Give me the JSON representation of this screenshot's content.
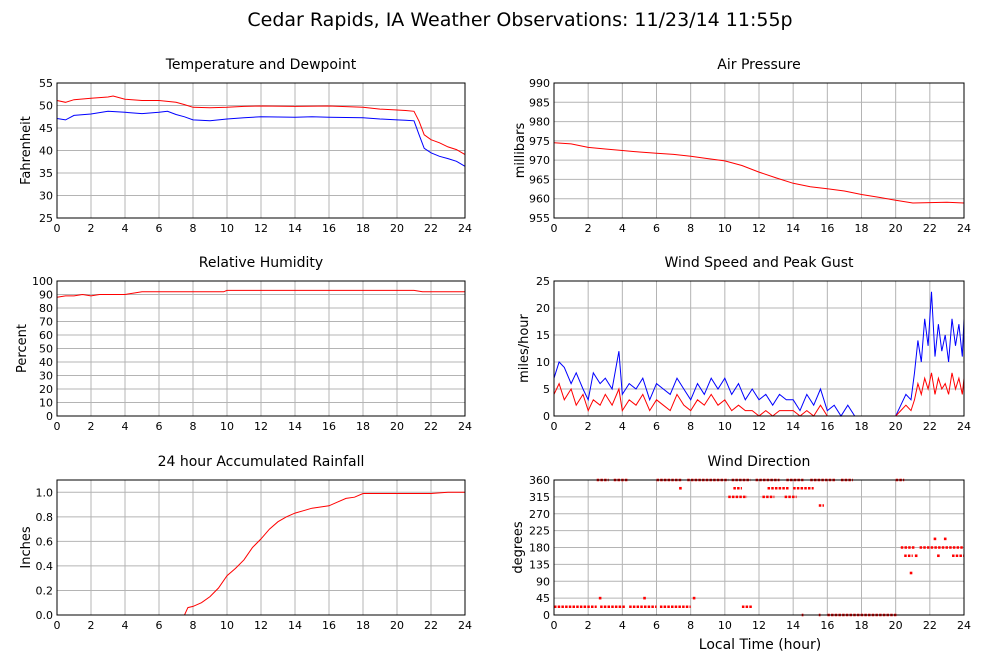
{
  "title": "Cedar Rapids, IA Weather Observations: 11/23/14 11:55p",
  "xlabel": "Local Time (hour)",
  "colors": {
    "red": "#ff0000",
    "blue": "#0000ff",
    "grid": "#b4b4b4"
  },
  "chart_data": [
    {
      "id": "temp",
      "type": "line",
      "title": "Temperature and Dewpoint",
      "ylabel": "Fahrenheit",
      "xlim": [
        0,
        24
      ],
      "ylim": [
        25,
        55
      ],
      "xticks": [
        0,
        2,
        4,
        6,
        8,
        10,
        12,
        14,
        16,
        18,
        20,
        22,
        24
      ],
      "yticks": [
        25,
        30,
        35,
        40,
        45,
        50,
        55
      ],
      "grid": true,
      "series": [
        {
          "color": "#ff0000",
          "x": [
            0,
            0.5,
            1,
            2,
            3,
            3.3,
            4,
            5,
            6,
            7,
            7.5,
            8,
            9,
            10,
            11,
            12,
            14,
            16,
            18,
            19,
            20,
            20.5,
            21,
            21.3,
            21.6,
            22,
            22.5,
            23,
            23.5,
            24
          ],
          "y": [
            51.1,
            50.7,
            51.3,
            51.6,
            51.9,
            52.1,
            51.4,
            51.1,
            51.1,
            50.7,
            50.2,
            49.6,
            49.5,
            49.6,
            49.8,
            49.9,
            49.8,
            49.9,
            49.6,
            49.2,
            49.0,
            48.9,
            48.7,
            46.5,
            43.5,
            42.4,
            41.7,
            40.8,
            40.2,
            39.1
          ]
        },
        {
          "color": "#0000ff",
          "x": [
            0,
            0.5,
            1,
            2,
            3,
            4,
            5,
            6,
            6.5,
            7,
            7.5,
            8,
            9,
            10,
            11,
            12,
            14,
            15,
            16,
            18,
            19,
            20,
            20.5,
            21,
            21.3,
            21.6,
            22,
            22.5,
            23,
            23.5,
            24
          ],
          "y": [
            47.1,
            46.8,
            47.8,
            48.1,
            48.7,
            48.5,
            48.2,
            48.5,
            48.7,
            48.0,
            47.5,
            46.8,
            46.6,
            47.0,
            47.3,
            47.5,
            47.4,
            47.5,
            47.4,
            47.3,
            47.0,
            46.8,
            46.7,
            46.6,
            43.5,
            40.5,
            39.5,
            38.7,
            38.2,
            37.6,
            36.5
          ]
        }
      ]
    },
    {
      "id": "pressure",
      "type": "line",
      "title": "Air Pressure",
      "ylabel": "millibars",
      "xlim": [
        0,
        24
      ],
      "ylim": [
        955,
        990
      ],
      "xticks": [
        0,
        2,
        4,
        6,
        8,
        10,
        12,
        14,
        16,
        18,
        20,
        22,
        24
      ],
      "yticks": [
        955,
        960,
        965,
        970,
        975,
        980,
        985,
        990
      ],
      "grid": true,
      "series": [
        {
          "color": "#ff0000",
          "x": [
            0,
            1,
            2,
            3,
            4,
            5,
            6,
            7,
            8,
            9,
            10,
            11,
            12,
            13,
            14,
            15,
            16,
            17,
            18,
            19,
            20,
            21,
            22,
            23,
            24
          ],
          "y": [
            974.5,
            974.2,
            973.3,
            972.9,
            972.5,
            972.1,
            971.8,
            971.5,
            971.0,
            970.4,
            969.8,
            968.6,
            966.9,
            965.4,
            964.0,
            963.1,
            962.6,
            962.0,
            961.1,
            960.4,
            959.6,
            958.9,
            959.0,
            959.1,
            958.9
          ]
        }
      ]
    },
    {
      "id": "humidity",
      "type": "line",
      "title": "Relative Humidity",
      "ylabel": "Percent",
      "xlim": [
        0,
        24
      ],
      "ylim": [
        0,
        100
      ],
      "xticks": [
        0,
        2,
        4,
        6,
        8,
        10,
        12,
        14,
        16,
        18,
        20,
        22,
        24
      ],
      "yticks": [
        0,
        10,
        20,
        30,
        40,
        50,
        60,
        70,
        80,
        90,
        100
      ],
      "grid": true,
      "series": [
        {
          "color": "#ff0000",
          "x": [
            0,
            0.5,
            1,
            1.5,
            2,
            2.5,
            3,
            3.5,
            4,
            4.5,
            5,
            6,
            7,
            8,
            9,
            9.8,
            10,
            12,
            14,
            16,
            18,
            20,
            21,
            21.5,
            22,
            23,
            24
          ],
          "y": [
            88,
            89,
            89,
            90,
            89,
            90,
            90,
            90,
            90,
            91,
            92,
            92,
            92,
            92,
            92,
            92,
            93,
            93,
            93,
            93,
            93,
            93,
            93,
            92,
            92,
            92,
            92
          ]
        }
      ]
    },
    {
      "id": "wind",
      "type": "line",
      "title": "Wind Speed and Peak Gust",
      "ylabel": "miles/hour",
      "xlim": [
        0,
        24
      ],
      "ylim": [
        0,
        25
      ],
      "xticks": [
        0,
        2,
        4,
        6,
        8,
        10,
        12,
        14,
        16,
        18,
        20,
        22,
        24
      ],
      "yticks": [
        0,
        5,
        10,
        15,
        20,
        25
      ],
      "grid": true,
      "series": [
        {
          "color": "#0000ff",
          "x": [
            0,
            0.3,
            0.6,
            1.0,
            1.3,
            1.7,
            2.0,
            2.3,
            2.7,
            3.0,
            3.4,
            3.8,
            4.0,
            4.4,
            4.8,
            5.2,
            5.6,
            6.0,
            6.4,
            6.8,
            7.2,
            7.6,
            8.0,
            8.4,
            8.8,
            9.2,
            9.6,
            10.0,
            10.4,
            10.8,
            11.2,
            11.6,
            12.0,
            12.4,
            12.8,
            13.2,
            13.6,
            14.0,
            14.4,
            14.8,
            15.2,
            15.6,
            16.0,
            16.4,
            16.8,
            17.2,
            17.6,
            18.0,
            19.0,
            20.0,
            20.3,
            20.6,
            20.9,
            21.1,
            21.3,
            21.5,
            21.7,
            21.9,
            22.1,
            22.3,
            22.5,
            22.7,
            22.9,
            23.1,
            23.3,
            23.5,
            23.7,
            23.9,
            24.0
          ],
          "y": [
            7,
            10,
            9,
            6,
            8,
            5,
            3,
            8,
            6,
            7,
            5,
            12,
            4,
            6,
            5,
            7,
            3,
            6,
            5,
            4,
            7,
            5,
            3,
            6,
            4,
            7,
            5,
            7,
            4,
            6,
            3,
            5,
            3,
            4,
            2,
            4,
            3,
            3,
            1,
            4,
            2,
            5,
            1,
            2,
            0,
            2,
            0,
            0,
            0,
            0,
            2,
            4,
            3,
            8,
            14,
            10,
            18,
            13,
            23,
            11,
            17,
            12,
            15,
            10,
            18,
            13,
            17,
            11,
            18
          ]
        },
        {
          "color": "#ff0000",
          "x": [
            0,
            0.3,
            0.6,
            1.0,
            1.3,
            1.7,
            2.0,
            2.3,
            2.7,
            3.0,
            3.4,
            3.8,
            4.0,
            4.4,
            4.8,
            5.2,
            5.6,
            6.0,
            6.4,
            6.8,
            7.2,
            7.6,
            8.0,
            8.4,
            8.8,
            9.2,
            9.6,
            10.0,
            10.4,
            10.8,
            11.2,
            11.6,
            12.0,
            12.4,
            12.8,
            13.2,
            13.6,
            14.0,
            14.4,
            14.8,
            15.2,
            15.6,
            16.0,
            16.4,
            16.8,
            17.2,
            17.6,
            18.0,
            19.0,
            20.0,
            20.3,
            20.6,
            20.9,
            21.1,
            21.3,
            21.5,
            21.7,
            21.9,
            22.1,
            22.3,
            22.5,
            22.7,
            22.9,
            23.1,
            23.3,
            23.5,
            23.7,
            23.9,
            24.0
          ],
          "y": [
            4,
            6,
            3,
            5,
            2,
            4,
            1,
            3,
            2,
            4,
            2,
            5,
            1,
            3,
            2,
            4,
            1,
            3,
            2,
            1,
            4,
            2,
            1,
            3,
            2,
            4,
            2,
            3,
            1,
            2,
            1,
            1,
            0,
            1,
            0,
            1,
            1,
            1,
            0,
            1,
            0,
            2,
            0,
            0,
            0,
            0,
            0,
            0,
            0,
            0,
            1,
            2,
            1,
            3,
            6,
            4,
            7,
            5,
            8,
            4,
            7,
            5,
            6,
            4,
            8,
            5,
            7,
            4,
            7
          ]
        }
      ]
    },
    {
      "id": "rain",
      "type": "line",
      "title": "24 hour Accumulated Rainfall",
      "ylabel": "Inches",
      "xlim": [
        0,
        24
      ],
      "ylim": [
        0,
        1.1
      ],
      "xticks": [
        0,
        2,
        4,
        6,
        8,
        10,
        12,
        14,
        16,
        18,
        20,
        22,
        24
      ],
      "yticks": [
        0.0,
        0.2,
        0.4,
        0.6,
        0.8,
        1.0
      ],
      "yticklabels": [
        "0.0",
        "0.2",
        "0.4",
        "0.6",
        "0.8",
        "1.0"
      ],
      "grid": true,
      "series": [
        {
          "color": "#ff0000",
          "x": [
            0,
            7.5,
            7.7,
            8.0,
            8.5,
            9.0,
            9.5,
            10.0,
            10.5,
            11.0,
            11.5,
            12.0,
            12.5,
            13.0,
            13.5,
            14.0,
            14.5,
            15.0,
            15.5,
            16.0,
            16.5,
            17.0,
            17.5,
            18.0,
            18.5,
            20.0,
            22.0,
            23.0,
            24.0
          ],
          "y": [
            0,
            0,
            0.06,
            0.07,
            0.1,
            0.15,
            0.22,
            0.32,
            0.38,
            0.45,
            0.55,
            0.62,
            0.7,
            0.76,
            0.8,
            0.83,
            0.85,
            0.87,
            0.88,
            0.89,
            0.92,
            0.95,
            0.96,
            0.99,
            0.99,
            0.99,
            0.99,
            1.0,
            1.0
          ]
        }
      ]
    },
    {
      "id": "direction",
      "type": "scatter",
      "title": "Wind Direction",
      "ylabel": "degrees",
      "xlim": [
        0,
        24
      ],
      "ylim": [
        0,
        360
      ],
      "xticks": [
        0,
        2,
        4,
        6,
        8,
        10,
        12,
        14,
        16,
        18,
        20,
        22,
        24
      ],
      "yticks": [
        0,
        45,
        90,
        135,
        180,
        225,
        270,
        315,
        360
      ],
      "grid": true,
      "series": [
        {
          "color": "#ff0000",
          "segments": [
            {
              "x0": 0.0,
              "x1": 2.5,
              "y": 22
            },
            {
              "x0": 2.7,
              "x1": 4.2,
              "y": 22
            },
            {
              "x0": 4.4,
              "x1": 6.0,
              "y": 22
            },
            {
              "x0": 6.2,
              "x1": 8.0,
              "y": 22
            },
            {
              "x0": 2.5,
              "x1": 3.2,
              "y": 360
            },
            {
              "x0": 3.5,
              "x1": 4.3,
              "y": 360
            },
            {
              "x0": 6.0,
              "x1": 7.5,
              "y": 360
            },
            {
              "x0": 7.8,
              "x1": 10.2,
              "y": 360
            },
            {
              "x0": 10.4,
              "x1": 11.5,
              "y": 360
            },
            {
              "x0": 11.8,
              "x1": 13.2,
              "y": 360
            },
            {
              "x0": 13.6,
              "x1": 14.6,
              "y": 360
            },
            {
              "x0": 15.0,
              "x1": 16.5,
              "y": 360
            },
            {
              "x0": 16.8,
              "x1": 17.5,
              "y": 360
            },
            {
              "x0": 20.0,
              "x1": 20.5,
              "y": 360
            },
            {
              "x0": 10.2,
              "x1": 11.3,
              "y": 315
            },
            {
              "x0": 12.2,
              "x1": 12.9,
              "y": 315
            },
            {
              "x0": 13.5,
              "x1": 14.2,
              "y": 315
            },
            {
              "x0": 10.5,
              "x1": 11.0,
              "y": 338
            },
            {
              "x0": 12.5,
              "x1": 13.8,
              "y": 338
            },
            {
              "x0": 14.0,
              "x1": 15.2,
              "y": 338
            },
            {
              "x0": 15.5,
              "x1": 15.8,
              "y": 292
            },
            {
              "x0": 11.0,
              "x1": 11.6,
              "y": 22
            },
            {
              "x0": 14.5,
              "x1": 14.6,
              "y": 0
            },
            {
              "x0": 15.5,
              "x1": 15.6,
              "y": 0
            },
            {
              "x0": 16.0,
              "x1": 20.1,
              "y": 0
            },
            {
              "x0": 20.3,
              "x1": 21.1,
              "y": 180
            },
            {
              "x0": 21.4,
              "x1": 24.0,
              "y": 180
            },
            {
              "x0": 20.5,
              "x1": 21.0,
              "y": 158
            },
            {
              "x0": 23.3,
              "x1": 24.0,
              "y": 158
            }
          ],
          "points": [
            {
              "x": 2.7,
              "y": 45
            },
            {
              "x": 5.3,
              "y": 45
            },
            {
              "x": 8.2,
              "y": 45
            },
            {
              "x": 7.4,
              "y": 338
            },
            {
              "x": 20.9,
              "y": 112
            },
            {
              "x": 21.2,
              "y": 158
            },
            {
              "x": 22.3,
              "y": 203
            },
            {
              "x": 22.5,
              "y": 158
            },
            {
              "x": 22.9,
              "y": 203
            }
          ]
        }
      ]
    }
  ]
}
